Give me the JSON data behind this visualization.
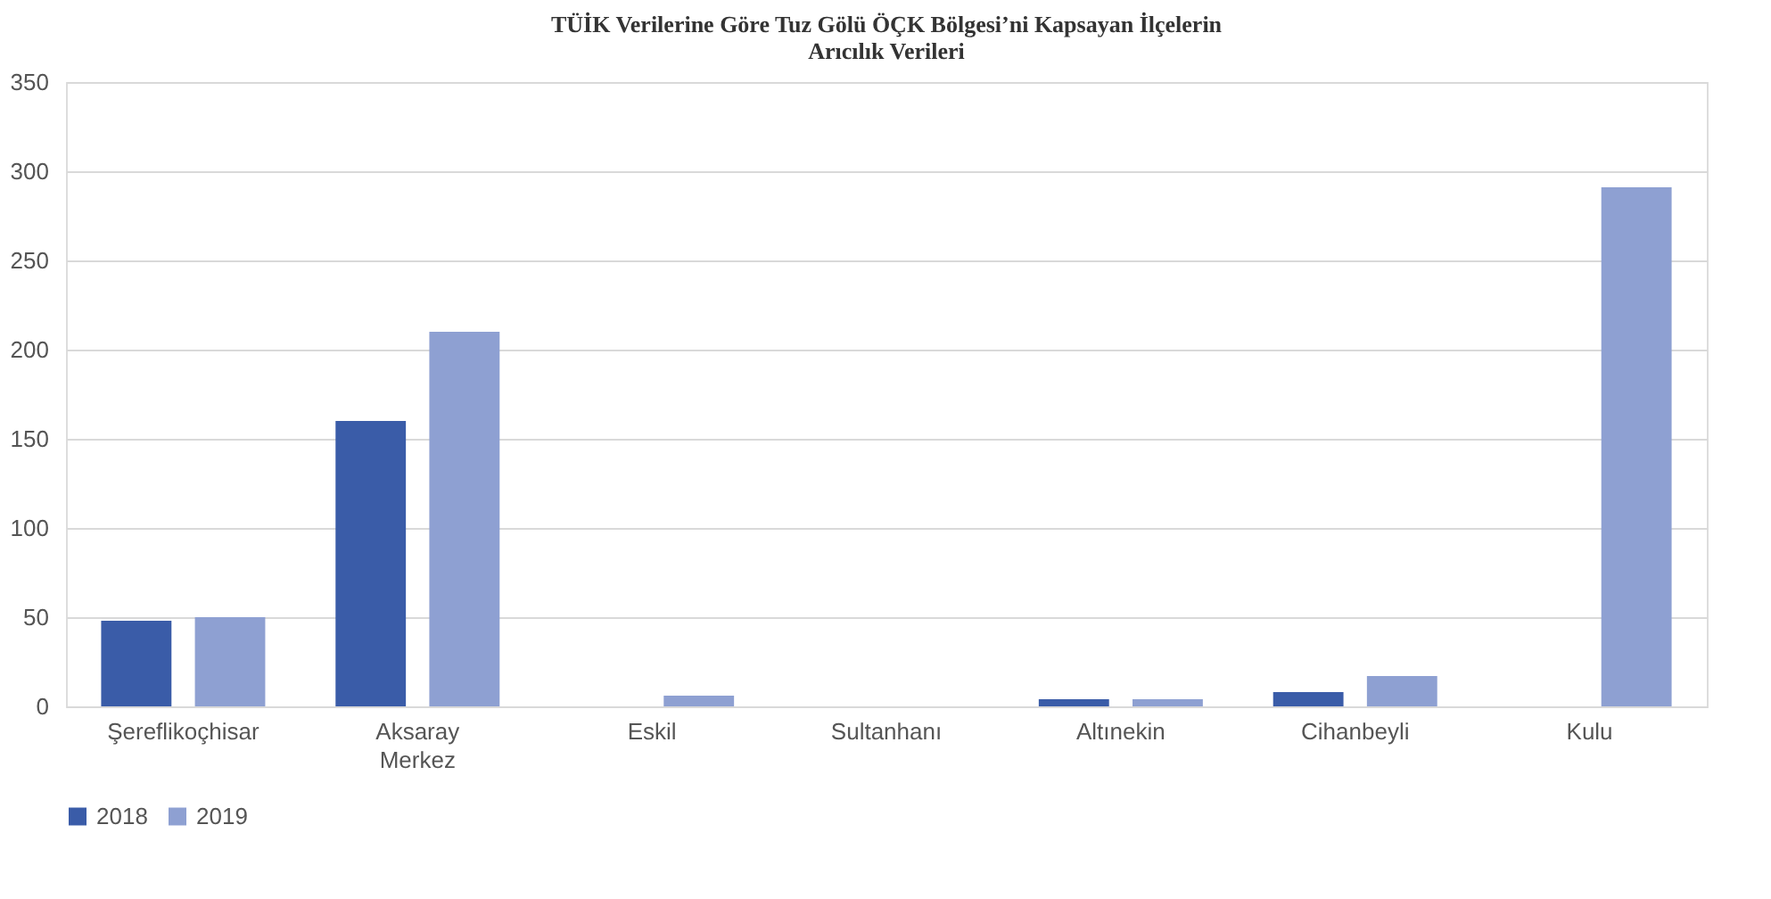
{
  "chart_data": {
    "type": "bar",
    "title": "TÜİK Verilerine Göre Tuz Gölü ÖÇK Bölgesi’ni Kapsayan İlçelerin\nArıcılık Verileri",
    "categories": [
      "Şereflikoçhisar",
      "Aksaray Merkez",
      "Eskil",
      "Sultanhanı",
      "Altınekin",
      "Cihanbeyli",
      "Kulu"
    ],
    "series": [
      {
        "name": "2018",
        "color": "#3a5ca8",
        "values": [
          48,
          160,
          0,
          0,
          4,
          8,
          0
        ]
      },
      {
        "name": "2019",
        "color": "#8ea0d2",
        "values": [
          50,
          210,
          6,
          0,
          4,
          17,
          291
        ]
      }
    ],
    "ylim": [
      0,
      350
    ],
    "yticks": [
      0,
      50,
      100,
      150,
      200,
      250,
      300,
      350
    ],
    "grid": "y",
    "legend": "bottom"
  }
}
